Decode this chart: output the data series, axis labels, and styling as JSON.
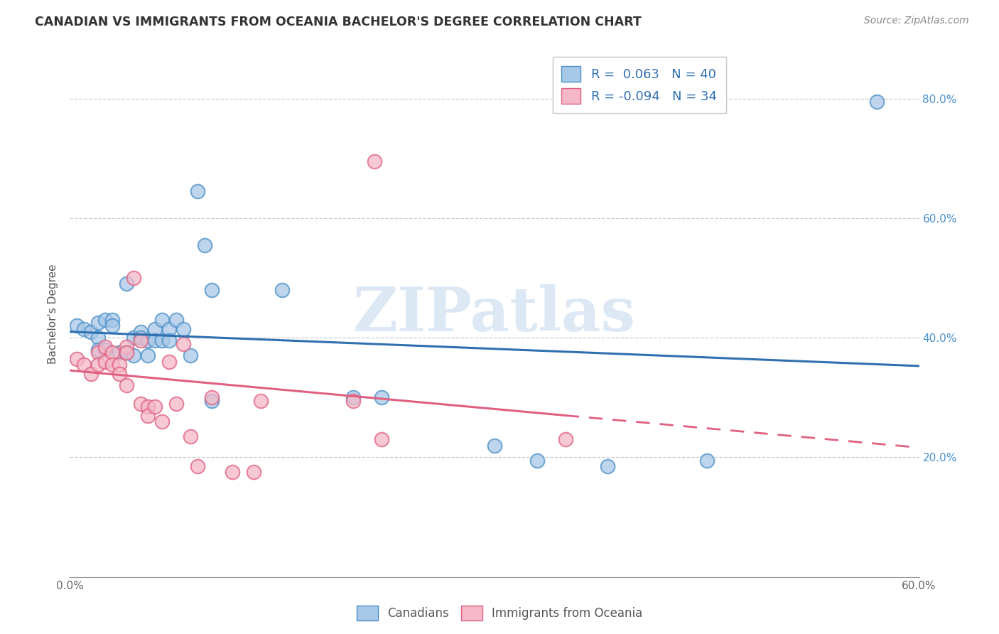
{
  "title": "CANADIAN VS IMMIGRANTS FROM OCEANIA BACHELOR'S DEGREE CORRELATION CHART",
  "source": "Source: ZipAtlas.com",
  "ylabel": "Bachelor's Degree",
  "watermark": "ZIPatlas",
  "xlim": [
    0.0,
    0.6
  ],
  "ylim": [
    0.0,
    0.88
  ],
  "xticks": [
    0.0,
    0.1,
    0.2,
    0.3,
    0.4,
    0.5,
    0.6
  ],
  "xtick_labels": [
    "0.0%",
    "",
    "",
    "",
    "",
    "",
    "60.0%"
  ],
  "yticks": [
    0.2,
    0.4,
    0.6,
    0.8
  ],
  "ytick_labels": [
    "20.0%",
    "40.0%",
    "60.0%",
    "80.0%"
  ],
  "blue_color": "#a8c8e8",
  "pink_color": "#f4b8c8",
  "blue_edge_color": "#4a90c8",
  "pink_edge_color": "#e06080",
  "blue_line_color": "#3070b0",
  "pink_line_color": "#e06080",
  "canadians_x": [
    0.005,
    0.01,
    0.015,
    0.02,
    0.02,
    0.02,
    0.025,
    0.025,
    0.03,
    0.03,
    0.035,
    0.04,
    0.04,
    0.045,
    0.045,
    0.05,
    0.05,
    0.055,
    0.055,
    0.06,
    0.06,
    0.065,
    0.065,
    0.07,
    0.07,
    0.075,
    0.08,
    0.085,
    0.09,
    0.095,
    0.1,
    0.1,
    0.15,
    0.2,
    0.22,
    0.3,
    0.33,
    0.38,
    0.45,
    0.57
  ],
  "canadians_y": [
    0.42,
    0.415,
    0.41,
    0.425,
    0.4,
    0.38,
    0.43,
    0.38,
    0.43,
    0.42,
    0.375,
    0.49,
    0.375,
    0.4,
    0.37,
    0.41,
    0.4,
    0.395,
    0.37,
    0.415,
    0.395,
    0.43,
    0.395,
    0.415,
    0.395,
    0.43,
    0.415,
    0.37,
    0.645,
    0.555,
    0.48,
    0.295,
    0.48,
    0.3,
    0.3,
    0.22,
    0.195,
    0.185,
    0.195,
    0.795
  ],
  "oceania_x": [
    0.005,
    0.01,
    0.015,
    0.02,
    0.02,
    0.025,
    0.025,
    0.03,
    0.03,
    0.035,
    0.035,
    0.04,
    0.04,
    0.04,
    0.045,
    0.05,
    0.05,
    0.055,
    0.055,
    0.06,
    0.065,
    0.07,
    0.075,
    0.08,
    0.085,
    0.09,
    0.1,
    0.115,
    0.13,
    0.135,
    0.2,
    0.215,
    0.22,
    0.35
  ],
  "oceania_y": [
    0.365,
    0.355,
    0.34,
    0.375,
    0.355,
    0.385,
    0.36,
    0.375,
    0.355,
    0.355,
    0.34,
    0.385,
    0.375,
    0.32,
    0.5,
    0.395,
    0.29,
    0.285,
    0.27,
    0.285,
    0.26,
    0.36,
    0.29,
    0.39,
    0.235,
    0.185,
    0.3,
    0.175,
    0.175,
    0.295,
    0.295,
    0.695,
    0.23,
    0.23
  ],
  "background_color": "#ffffff",
  "grid_color": "#cccccc"
}
